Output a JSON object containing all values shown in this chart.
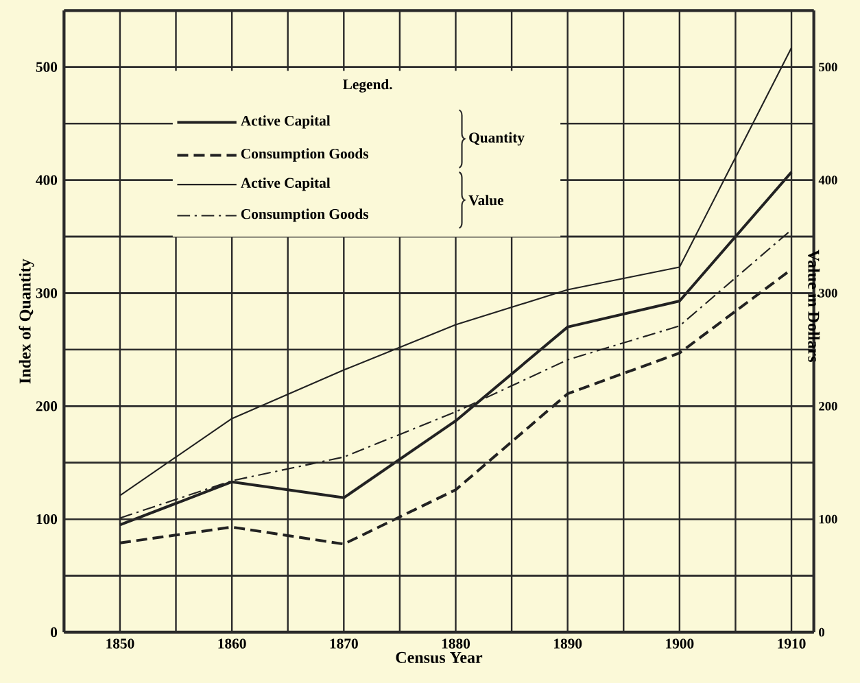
{
  "chart_data": {
    "type": "line",
    "xlabel": "Census Year",
    "ylabel": "Index of Quantity",
    "y2label": "Value in Dollars",
    "legend_title": "Legend.",
    "x": [
      1850,
      1860,
      1870,
      1880,
      1890,
      1900,
      1910
    ],
    "series": [
      {
        "name": "Active Capital",
        "color": "#222222",
        "line_style": "solid",
        "values": [
          95,
          133,
          119,
          187,
          270,
          293,
          407
        ]
      },
      {
        "name": "Consumption Goods",
        "color": "#222222",
        "line_style": "dashed",
        "values": [
          79,
          93,
          78,
          126,
          211,
          247,
          321
        ]
      },
      {
        "name": "Active Capital",
        "color": "#222222",
        "line_style": "solid",
        "axis": "y2",
        "values": [
          121,
          189,
          232,
          272,
          303,
          323,
          517
        ]
      },
      {
        "name": "Consumption Goods",
        "color": "#222222",
        "line_style": "dashdot",
        "axis": "y2",
        "values": [
          101,
          134,
          155,
          195,
          241,
          271,
          356
        ]
      }
    ],
    "annotations": [
      "Quantity",
      "Value"
    ],
    "xlim": [
      1845,
      1912
    ],
    "ylim": [
      0,
      550
    ],
    "y2lim": [
      0,
      550
    ],
    "xticks": [
      1850,
      {
        "value": 1855,
        "label": null
      },
      1860,
      {
        "value": 1865,
        "label": null
      },
      1870,
      {
        "value": 1875,
        "label": null
      },
      1880,
      {
        "value": 1885,
        "label": null
      },
      1890,
      {
        "value": 1895,
        "label": null
      },
      1900,
      {
        "value": 1905,
        "label": null
      },
      1910
    ],
    "yticks": [
      0,
      {
        "value": 50,
        "label": null
      },
      100,
      {
        "value": 150,
        "label": null
      },
      200,
      {
        "value": 250,
        "label": null
      },
      300,
      {
        "value": 350,
        "label": null
      },
      400,
      {
        "value": 450,
        "label": null
      },
      500
    ],
    "y2ticks": [
      0,
      {
        "value": 50,
        "label": null
      },
      100,
      {
        "value": 150,
        "label": null
      },
      200,
      {
        "value": 250,
        "label": null
      },
      300,
      {
        "value": 350,
        "label": null
      },
      400,
      {
        "value": 450,
        "label": null
      },
      500
    ],
    "grid": true,
    "legend": "top left"
  }
}
